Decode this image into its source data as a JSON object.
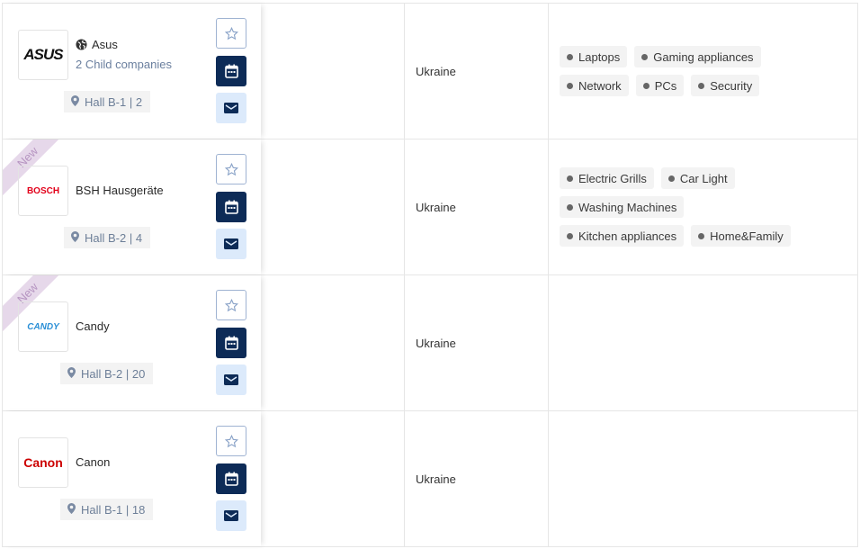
{
  "rows": [
    {
      "logo": "ASUS",
      "name": "Asus",
      "has_globe": true,
      "child": "2 Child companies",
      "hall": "Hall B-1 | 2",
      "new": false,
      "country": "Ukraine",
      "tags": [
        [
          "Laptops",
          "Gaming appliances"
        ],
        [
          "Network",
          "PCs",
          "Security"
        ]
      ]
    },
    {
      "logo": "BOSCH",
      "name": "BSH Hausgeräte",
      "has_globe": false,
      "hall": "Hall B-2 | 4",
      "new": true,
      "new_label": "New",
      "country": "Ukraine",
      "tags": [
        [
          "Electric Grills",
          "Car Light"
        ],
        [
          "Washing Machines"
        ],
        [
          "Kitchen appliances",
          "Home&Family"
        ]
      ]
    },
    {
      "logo": "CANDY",
      "name": "Candy",
      "has_globe": false,
      "hall": "Hall B-2 | 20",
      "new": true,
      "new_label": "New",
      "country": "Ukraine",
      "tags": []
    },
    {
      "logo": "Canon",
      "name": "Canon",
      "has_globe": false,
      "hall": "Hall B-1 | 18",
      "new": false,
      "country": "Ukraine",
      "tags": []
    }
  ],
  "colors": {
    "primary": "#0d2b57",
    "light_button": "#dceafb",
    "asus": "#111111",
    "bosch": "#e2001a",
    "candy": "#2a8fd6",
    "canon": "#cc0000"
  }
}
